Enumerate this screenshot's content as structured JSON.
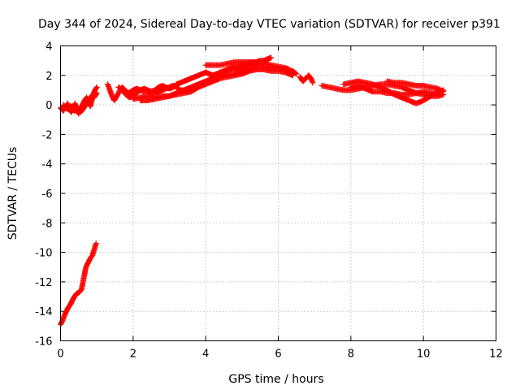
{
  "chart_data": {
    "type": "scatter",
    "title": "Day 344 of 2024, Sidereal Day-to-day VTEC variation (SDTVAR) for receiver p391",
    "xlabel": "GPS time / hours",
    "ylabel": "SDTVAR / TECUs",
    "xlim": [
      0,
      12
    ],
    "ylim": [
      -16,
      4
    ],
    "xticks": [
      0,
      2,
      4,
      6,
      8,
      10,
      12
    ],
    "yticks": [
      -16,
      -14,
      -12,
      -10,
      -8,
      -6,
      -4,
      -2,
      0,
      2,
      4
    ],
    "grid": true,
    "marker": "plus",
    "color": "#ff0000",
    "series": [
      {
        "tracks": [
          [
            [
              0.0,
              -14.9
            ],
            [
              0.06,
              -14.6
            ],
            [
              0.12,
              -14.2
            ],
            [
              0.2,
              -13.8
            ],
            [
              0.28,
              -13.5
            ],
            [
              0.36,
              -13.1
            ],
            [
              0.44,
              -12.8
            ],
            [
              0.52,
              -12.7
            ],
            [
              0.58,
              -12.5
            ],
            [
              0.62,
              -12.0
            ],
            [
              0.66,
              -11.5
            ],
            [
              0.7,
              -11.0
            ],
            [
              0.76,
              -10.7
            ],
            [
              0.82,
              -10.4
            ],
            [
              0.88,
              -10.2
            ],
            [
              0.93,
              -9.8
            ],
            [
              0.98,
              -9.4
            ]
          ],
          [
            [
              0.0,
              -0.2
            ],
            [
              0.08,
              -0.4
            ],
            [
              0.15,
              -0.1
            ],
            [
              0.2,
              0.1
            ],
            [
              0.25,
              -0.3
            ],
            [
              0.3,
              -0.5
            ],
            [
              0.36,
              -0.2
            ],
            [
              0.4,
              0.1
            ],
            [
              0.45,
              -0.4
            ],
            [
              0.5,
              -0.6
            ],
            [
              0.55,
              -0.2
            ],
            [
              0.6,
              0.0
            ],
            [
              0.66,
              0.3
            ],
            [
              0.72,
              0.5
            ],
            [
              0.78,
              0.2
            ],
            [
              0.82,
              -0.1
            ],
            [
              0.86,
              0.3
            ],
            [
              0.9,
              0.7
            ],
            [
              0.95,
              1.0
            ],
            [
              1.0,
              1.2
            ]
          ],
          [
            [
              0.08,
              0.0
            ],
            [
              0.14,
              -0.2
            ],
            [
              0.22,
              -0.3
            ],
            [
              0.3,
              -0.1
            ],
            [
              0.38,
              -0.4
            ],
            [
              0.46,
              -0.2
            ],
            [
              0.55,
              -0.5
            ],
            [
              0.62,
              -0.3
            ],
            [
              0.7,
              0.1
            ],
            [
              0.78,
              0.4
            ],
            [
              0.85,
              0.6
            ],
            [
              0.92,
              0.5
            ],
            [
              1.0,
              0.8
            ]
          ],
          [
            [
              1.3,
              1.4
            ],
            [
              1.36,
              1.0
            ],
            [
              1.42,
              0.6
            ],
            [
              1.48,
              0.3
            ],
            [
              1.55,
              0.6
            ],
            [
              1.62,
              0.9
            ],
            [
              1.7,
              1.2
            ],
            [
              1.78,
              1.0
            ],
            [
              1.86,
              0.8
            ],
            [
              1.94,
              0.9
            ],
            [
              2.0,
              1.0
            ],
            [
              2.1,
              1.1
            ],
            [
              2.2,
              1.0
            ],
            [
              2.3,
              0.9
            ],
            [
              2.4,
              0.9
            ],
            [
              2.5,
              0.8
            ],
            [
              2.6,
              0.8
            ],
            [
              2.7,
              0.9
            ],
            [
              2.8,
              1.0
            ],
            [
              2.9,
              1.1
            ],
            [
              3.0,
              1.2
            ],
            [
              3.1,
              1.3
            ],
            [
              3.2,
              1.2
            ],
            [
              3.3,
              1.0
            ],
            [
              3.4,
              1.0
            ],
            [
              3.5,
              1.1
            ],
            [
              3.6,
              1.2
            ],
            [
              3.7,
              1.3
            ],
            [
              3.8,
              1.4
            ],
            [
              3.9,
              1.5
            ],
            [
              4.0,
              1.6
            ],
            [
              4.1,
              1.7
            ],
            [
              4.2,
              1.9
            ],
            [
              4.3,
              2.0
            ],
            [
              4.4,
              2.1
            ],
            [
              4.5,
              2.2
            ],
            [
              4.6,
              2.3
            ],
            [
              4.7,
              2.4
            ],
            [
              4.8,
              2.4
            ],
            [
              4.9,
              2.5
            ],
            [
              5.0,
              2.6
            ],
            [
              5.1,
              2.7
            ],
            [
              5.2,
              2.8
            ],
            [
              5.3,
              2.9
            ],
            [
              5.4,
              2.9
            ],
            [
              5.5,
              3.0
            ],
            [
              5.6,
              3.0
            ],
            [
              5.7,
              3.1
            ],
            [
              5.8,
              3.2
            ]
          ],
          [
            [
              1.6,
              1.2
            ],
            [
              1.7,
              1.0
            ],
            [
              1.8,
              0.7
            ],
            [
              1.9,
              0.5
            ],
            [
              2.0,
              0.6
            ],
            [
              2.1,
              0.8
            ],
            [
              2.2,
              1.0
            ],
            [
              2.3,
              1.1
            ],
            [
              2.4,
              1.0
            ],
            [
              2.5,
              0.9
            ],
            [
              2.6,
              1.0
            ],
            [
              2.7,
              1.2
            ],
            [
              2.8,
              1.3
            ],
            [
              2.9,
              1.2
            ],
            [
              3.0,
              1.1
            ],
            [
              3.1,
              1.2
            ],
            [
              3.2,
              1.4
            ],
            [
              3.3,
              1.5
            ],
            [
              3.4,
              1.6
            ],
            [
              3.5,
              1.7
            ],
            [
              3.6,
              1.8
            ],
            [
              3.7,
              1.9
            ],
            [
              3.8,
              2.0
            ],
            [
              3.9,
              2.1
            ],
            [
              4.0,
              2.2
            ],
            [
              4.1,
              2.1
            ],
            [
              4.2,
              2.0
            ],
            [
              4.3,
              2.1
            ],
            [
              4.4,
              2.2
            ],
            [
              4.5,
              2.3
            ],
            [
              4.6,
              2.4
            ],
            [
              4.7,
              2.5
            ],
            [
              4.8,
              2.6
            ],
            [
              4.9,
              2.6
            ],
            [
              5.0,
              2.7
            ],
            [
              5.1,
              2.7
            ],
            [
              5.2,
              2.8
            ],
            [
              5.3,
              2.8
            ],
            [
              5.4,
              2.8
            ]
          ],
          [
            [
              2.0,
              0.4
            ],
            [
              2.2,
              0.5
            ],
            [
              2.4,
              0.6
            ],
            [
              2.6,
              0.5
            ],
            [
              2.8,
              0.6
            ],
            [
              3.0,
              0.6
            ],
            [
              3.2,
              0.7
            ],
            [
              3.4,
              0.8
            ],
            [
              3.6,
              0.9
            ],
            [
              3.8,
              1.2
            ],
            [
              4.0,
              1.4
            ],
            [
              4.2,
              1.6
            ],
            [
              4.4,
              1.8
            ],
            [
              4.6,
              1.9
            ],
            [
              4.8,
              2.0
            ],
            [
              5.0,
              2.1
            ],
            [
              5.2,
              2.3
            ],
            [
              5.4,
              2.4
            ],
            [
              5.6,
              2.4
            ],
            [
              5.8,
              2.3
            ],
            [
              6.0,
              2.3
            ],
            [
              6.2,
              2.2
            ],
            [
              6.4,
              2.0
            ]
          ],
          [
            [
              2.2,
              0.3
            ],
            [
              2.4,
              0.3
            ],
            [
              2.6,
              0.4
            ],
            [
              2.8,
              0.5
            ],
            [
              3.0,
              0.6
            ],
            [
              3.2,
              0.8
            ],
            [
              3.4,
              1.0
            ],
            [
              3.6,
              1.1
            ],
            [
              3.8,
              1.3
            ],
            [
              4.0,
              1.5
            ],
            [
              4.2,
              1.7
            ],
            [
              4.4,
              1.9
            ],
            [
              4.6,
              2.0
            ],
            [
              4.8,
              2.1
            ],
            [
              5.0,
              2.3
            ],
            [
              5.2,
              2.5
            ],
            [
              5.4,
              2.6
            ],
            [
              5.6,
              2.6
            ],
            [
              5.8,
              2.5
            ],
            [
              6.0,
              2.5
            ],
            [
              6.2,
              2.4
            ],
            [
              6.4,
              2.3
            ],
            [
              6.5,
              2.1
            ]
          ],
          [
            [
              4.0,
              2.7
            ],
            [
              4.2,
              2.7
            ],
            [
              4.4,
              2.7
            ],
            [
              4.6,
              2.8
            ],
            [
              4.8,
              2.9
            ],
            [
              5.0,
              2.9
            ],
            [
              5.2,
              2.9
            ],
            [
              5.4,
              2.9
            ],
            [
              5.6,
              2.8
            ],
            [
              5.8,
              2.7
            ],
            [
              6.0,
              2.6
            ],
            [
              6.2,
              2.5
            ],
            [
              6.3,
              2.4
            ]
          ],
          [
            [
              6.6,
              1.9
            ],
            [
              6.68,
              1.6
            ],
            [
              6.76,
              1.8
            ],
            [
              6.84,
              2.0
            ],
            [
              6.9,
              1.8
            ],
            [
              6.95,
              1.5
            ]
          ],
          [
            [
              7.2,
              1.3
            ],
            [
              7.4,
              1.2
            ],
            [
              7.6,
              1.1
            ],
            [
              7.8,
              1.0
            ],
            [
              8.0,
              1.0
            ],
            [
              8.2,
              1.1
            ],
            [
              8.4,
              1.2
            ],
            [
              8.6,
              1.3
            ],
            [
              8.8,
              1.4
            ],
            [
              9.0,
              1.4
            ],
            [
              9.2,
              1.3
            ],
            [
              9.4,
              1.2
            ],
            [
              9.6,
              1.0
            ],
            [
              9.8,
              0.8
            ],
            [
              10.0,
              0.7
            ],
            [
              10.2,
              0.6
            ],
            [
              10.4,
              0.6
            ],
            [
              10.55,
              0.7
            ]
          ],
          [
            [
              7.8,
              1.4
            ],
            [
              8.0,
              1.5
            ],
            [
              8.2,
              1.6
            ],
            [
              8.4,
              1.5
            ],
            [
              8.6,
              1.4
            ],
            [
              8.8,
              1.2
            ],
            [
              9.0,
              1.0
            ],
            [
              9.2,
              0.7
            ],
            [
              9.4,
              0.5
            ],
            [
              9.6,
              0.3
            ],
            [
              9.8,
              0.1
            ],
            [
              10.0,
              0.3
            ],
            [
              10.2,
              0.6
            ],
            [
              10.4,
              0.9
            ],
            [
              10.55,
              1.0
            ]
          ],
          [
            [
              8.0,
              1.2
            ],
            [
              8.2,
              1.3
            ],
            [
              8.4,
              1.1
            ],
            [
              8.6,
              0.9
            ],
            [
              8.8,
              0.9
            ],
            [
              9.0,
              0.8
            ],
            [
              9.2,
              0.8
            ],
            [
              9.4,
              0.7
            ],
            [
              9.6,
              0.7
            ],
            [
              9.8,
              0.8
            ],
            [
              10.0,
              0.9
            ],
            [
              10.2,
              0.8
            ],
            [
              10.4,
              0.7
            ]
          ],
          [
            [
              9.0,
              1.6
            ],
            [
              9.2,
              1.5
            ],
            [
              9.4,
              1.5
            ],
            [
              9.6,
              1.4
            ],
            [
              9.8,
              1.3
            ],
            [
              10.0,
              1.3
            ],
            [
              10.2,
              1.2
            ],
            [
              10.4,
              1.1
            ],
            [
              10.55,
              0.9
            ]
          ]
        ]
      }
    ]
  }
}
